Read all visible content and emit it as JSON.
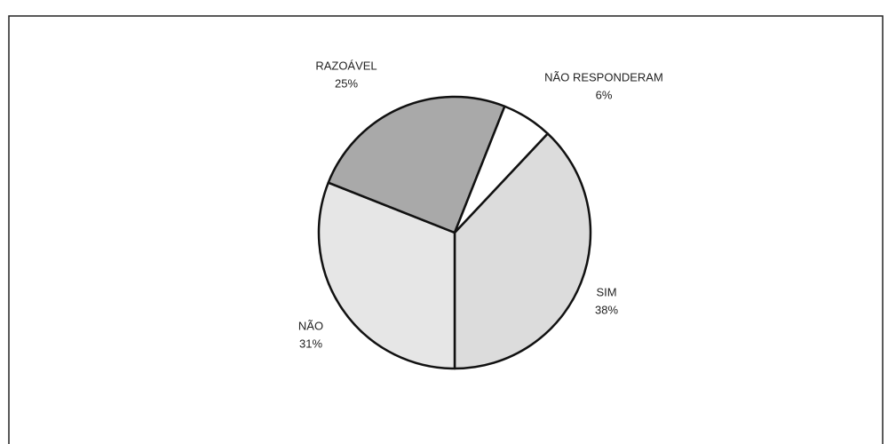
{
  "chart_data": {
    "type": "pie",
    "categories": [
      "SIM",
      "NÃO",
      "RAZOÁVEL",
      "NÃO RESPONDERAM"
    ],
    "values": [
      38,
      31,
      25,
      6
    ],
    "value_labels": [
      "38%",
      "31%",
      "25%",
      "6%"
    ],
    "colors": [
      "#dcdcdc",
      "#e6e6e6",
      "#a9a9a9",
      "#ffffff"
    ]
  }
}
